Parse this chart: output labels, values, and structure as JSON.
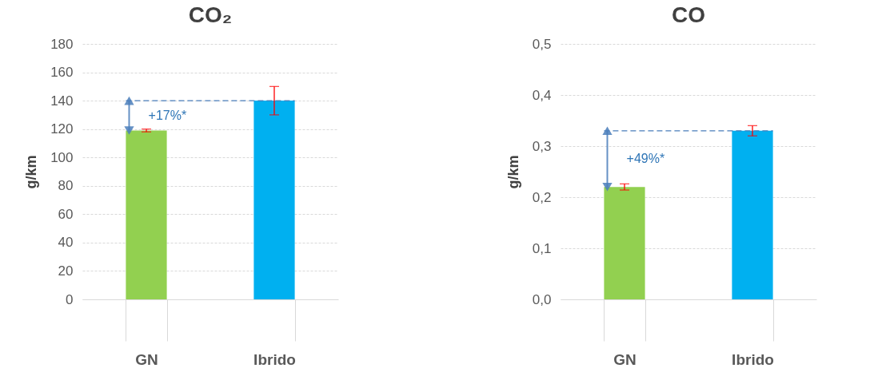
{
  "chart_data": [
    {
      "type": "bar",
      "title": "CO₂",
      "ylabel": "g/km",
      "categories": [
        "GN",
        "Ibrido"
      ],
      "values": [
        119,
        140
      ],
      "colors": [
        "#92d050",
        "#00b0f0"
      ],
      "errors": [
        1,
        10
      ],
      "ylim": [
        0,
        180
      ],
      "yticks": [
        0,
        20,
        40,
        60,
        80,
        100,
        120,
        140,
        160,
        180
      ],
      "grid": "y",
      "annotations": [
        "+17%*"
      ],
      "ref_lines": [
        {
          "axis": "y",
          "value": 140,
          "color": "#4a7ebb",
          "line_style": "dashed"
        }
      ]
    },
    {
      "type": "bar",
      "title": "CO",
      "ylabel": "g/km",
      "categories": [
        "GN",
        "Ibrido"
      ],
      "values": [
        0.22,
        0.33
      ],
      "colors": [
        "#92d050",
        "#00b0f0"
      ],
      "errors": [
        0.006,
        0.01
      ],
      "ylim": [
        0,
        0.5
      ],
      "yticks": [
        {
          "value": 0,
          "label": "0,0"
        },
        {
          "value": 0.1,
          "label": "0,1"
        },
        {
          "value": 0.2,
          "label": "0,2"
        },
        {
          "value": 0.3,
          "label": "0,3"
        },
        {
          "value": 0.4,
          "label": "0,4"
        },
        {
          "value": 0.5,
          "label": "0,5"
        }
      ],
      "grid": "y",
      "annotations": [
        "+49%*"
      ],
      "ref_lines": [
        {
          "axis": "y",
          "value": 0.33,
          "color": "#4a7ebb",
          "line_style": "dashed"
        }
      ]
    }
  ]
}
